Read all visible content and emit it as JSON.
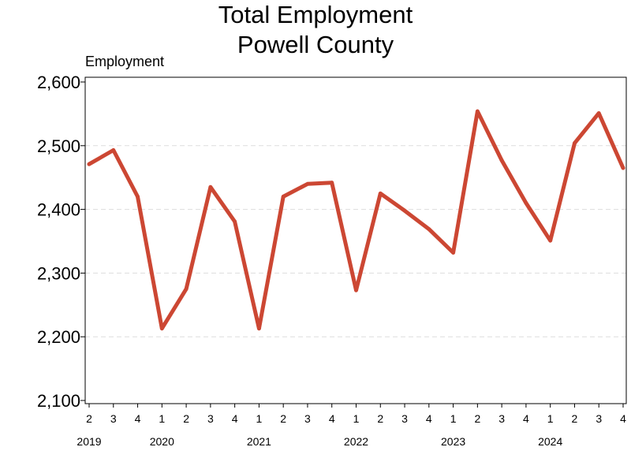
{
  "chart_data": {
    "type": "line",
    "title": "Total Employment",
    "subtitle": "Powell County",
    "ylabel": "Employment",
    "xlabel": "",
    "ylim": [
      2100,
      2600
    ],
    "yticks": [
      "2,100",
      "2,200",
      "2,300",
      "2,400",
      "2,500",
      "2,600"
    ],
    "grid": "horizontal dashed",
    "quarters": [
      "2",
      "3",
      "4",
      "1",
      "2",
      "3",
      "4",
      "1",
      "2",
      "3",
      "4",
      "1",
      "2",
      "3",
      "4",
      "1",
      "2",
      "3",
      "4",
      "1",
      "2",
      "3",
      "4"
    ],
    "years": [
      {
        "label": "2019",
        "quarter_index": 0
      },
      {
        "label": "2020",
        "quarter_index": 3
      },
      {
        "label": "2021",
        "quarter_index": 7
      },
      {
        "label": "2022",
        "quarter_index": 11
      },
      {
        "label": "2023",
        "quarter_index": 15
      },
      {
        "label": "2024",
        "quarter_index": 19
      }
    ],
    "series": [
      {
        "color": "#cc4733",
        "values": [
          2471,
          2493,
          2420,
          2213,
          2275,
          2435,
          2381,
          2213,
          2420,
          2440,
          2442,
          2273,
          2425,
          2398,
          2369,
          2332,
          2554,
          2477,
          2410,
          2351,
          2504,
          2551,
          2465
        ]
      }
    ]
  }
}
